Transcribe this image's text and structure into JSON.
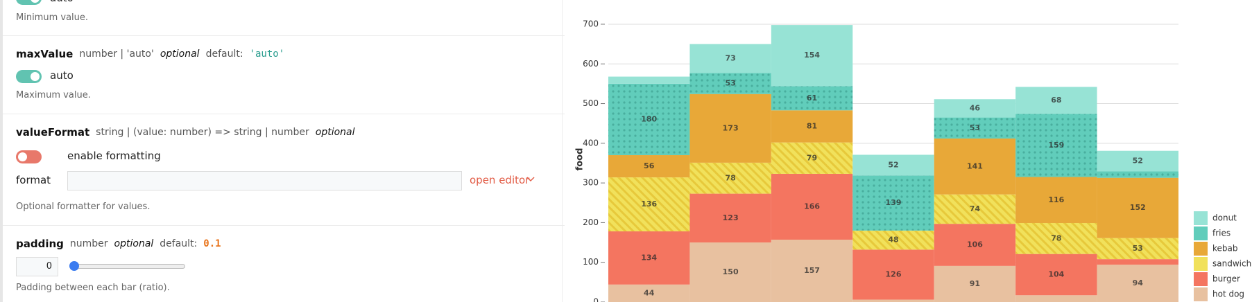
{
  "panel": {
    "min_value": {
      "toggle_label": "auto",
      "description": "Minimum value."
    },
    "max_value": {
      "name": "maxValue",
      "type": "number | 'auto'",
      "optional": "optional",
      "default_label": "default:",
      "default": "'auto'",
      "toggle_label": "auto",
      "description": "Maximum value."
    },
    "value_format": {
      "name": "valueFormat",
      "type": "string | (value: number) => string | number",
      "optional": "optional",
      "toggle_label": "enable formatting",
      "field_label": "format",
      "editor_link": "open editor",
      "description": "Optional formatter for values."
    },
    "padding": {
      "name": "padding",
      "type": "number",
      "optional": "optional",
      "default_label": "default:",
      "default": "0.1",
      "input_value": 0,
      "description": "Padding between each bar (ratio)."
    }
  },
  "chart_data": {
    "type": "stacked-bar",
    "y_label": "food",
    "categories": [
      null,
      null,
      null,
      null,
      null,
      null,
      null
    ],
    "series": [
      {
        "name": "hot dog",
        "color": "#e8c1a0",
        "values": [
          44,
          150,
          157,
          6,
          91,
          17,
          94
        ]
      },
      {
        "name": "burger",
        "color": "#f47560",
        "values": [
          134,
          123,
          166,
          126,
          106,
          104,
          14
        ]
      },
      {
        "name": "sandwich",
        "color": "#f1e15b",
        "pattern": "lines",
        "values": [
          136,
          78,
          79,
          48,
          74,
          78,
          53
        ]
      },
      {
        "name": "kebab",
        "color": "#e8a838",
        "values": [
          56,
          173,
          81,
          0,
          141,
          116,
          152
        ]
      },
      {
        "name": "fries",
        "color": "#61cdbb",
        "pattern": "dots",
        "values": [
          180,
          53,
          61,
          139,
          53,
          159,
          16
        ]
      },
      {
        "name": "donut",
        "color": "#97e3d5",
        "values": [
          18,
          73,
          154,
          52,
          46,
          68,
          52
        ]
      }
    ],
    "ylim": [
      0,
      720
    ],
    "yticks": [
      0,
      100,
      200,
      300,
      400,
      500,
      600,
      700
    ],
    "grid": true,
    "legend": "bottom-right"
  }
}
